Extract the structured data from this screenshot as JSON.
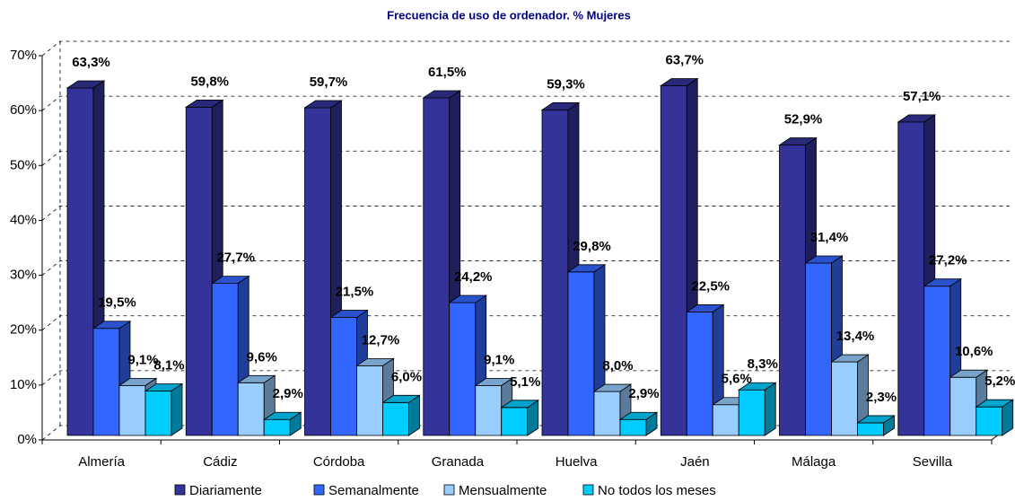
{
  "chart_data": {
    "type": "bar3d",
    "title": "Frecuencia de uso  de ordenador. % Mujeres",
    "categories": [
      "Almería",
      "Cádiz",
      "Córdoba",
      "Granada",
      "Huelva",
      "Jaén",
      "Málaga",
      "Sevilla"
    ],
    "series": [
      {
        "name": "Diariamente",
        "color": "#333399",
        "values": [
          63.3,
          59.8,
          59.7,
          61.5,
          59.3,
          63.7,
          52.9,
          57.1
        ],
        "value_labels": [
          "63,3%",
          "59,8%",
          "59,7%",
          "61,5%",
          "59,3%",
          "63,7%",
          "52,9%",
          "57,1%"
        ]
      },
      {
        "name": "Semanalmente",
        "color": "#3366ff",
        "values": [
          19.5,
          27.7,
          21.5,
          24.2,
          29.8,
          22.5,
          31.4,
          27.2
        ],
        "value_labels": [
          "19,5%",
          "27,7%",
          "21,5%",
          "24,2%",
          "29,8%",
          "22,5%",
          "31,4%",
          "27,2%"
        ]
      },
      {
        "name": "Mensualmente",
        "color": "#99ccff",
        "values": [
          9.1,
          9.6,
          12.7,
          9.1,
          8.0,
          5.6,
          13.4,
          10.6
        ],
        "value_labels": [
          "9,1%",
          "9,6%",
          "12,7%",
          "9,1%",
          "8,0%",
          "5,6%",
          "13,4%",
          "10,6%"
        ]
      },
      {
        "name": "No todos los meses",
        "color": "#00ccff",
        "values": [
          8.1,
          2.9,
          6.0,
          5.1,
          2.9,
          8.3,
          2.3,
          5.2
        ],
        "value_labels": [
          "8,1%",
          "2,9%",
          "6,0%",
          "5,1%",
          "2,9%",
          "8,3%",
          "2,3%",
          "5,2%"
        ]
      }
    ],
    "ylim": [
      0,
      70
    ],
    "yticks": [
      {
        "value": 0,
        "label": "0%"
      },
      {
        "value": 10,
        "label": "10%"
      },
      {
        "value": 20,
        "label": "20%"
      },
      {
        "value": 30,
        "label": "30%"
      },
      {
        "value": 40,
        "label": "40%"
      },
      {
        "value": 50,
        "label": "50%"
      },
      {
        "value": 60,
        "label": "60%"
      },
      {
        "value": 70,
        "label": "70%"
      }
    ],
    "grid": true,
    "legend": "bottom"
  }
}
